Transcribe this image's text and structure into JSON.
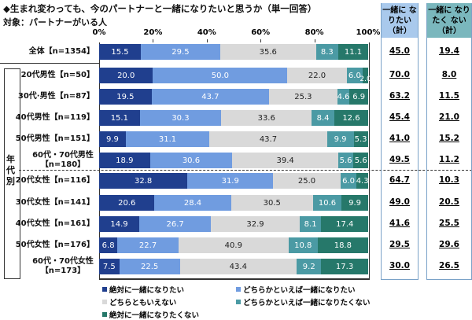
{
  "title": "◆生まれ変わっても、今のパートナーと一緒になりたいと思うか（単一回答）",
  "subtitle": "対象：パートナーがいる人",
  "group_label": "年代別",
  "total_headers": [
    "一緒に なりたい （計）",
    "一緒に なりたく ない（計）"
  ],
  "colors": [
    "#203f8e",
    "#709ce0",
    "#d9d9d9",
    "#4b9aa4",
    "#26786a"
  ],
  "chart_data": {
    "type": "bar",
    "orientation": "horizontal",
    "stacked": true,
    "xlim": [
      0,
      100
    ],
    "xticks": [
      "0%",
      "20%",
      "40%",
      "60%",
      "80%",
      "100%"
    ],
    "legend_position": "bottom",
    "categories": [
      "全体【n=1354】",
      "20代男性【n=50】",
      "30代·男性【n=87】",
      "40代男性【n=119】",
      "50代男性【n=151】",
      "60代・70代男性【n=180】",
      "20代女性【n=116】",
      "30代女性【n=141】",
      "40代女性【n=161】",
      "50代女性【n=176】",
      "60代・70代女性【n=173】"
    ],
    "series": [
      {
        "name": "絶対に一緒になりたい",
        "values": [
          15.5,
          20.0,
          19.5,
          15.1,
          9.9,
          18.9,
          32.8,
          20.6,
          14.9,
          6.8,
          7.5
        ]
      },
      {
        "name": "どちらかといえば一緒になりたい",
        "values": [
          29.5,
          50.0,
          43.7,
          30.3,
          31.1,
          30.6,
          31.9,
          28.4,
          26.7,
          22.7,
          22.5
        ]
      },
      {
        "name": "どちらともいえない",
        "values": [
          35.6,
          22.0,
          25.3,
          33.6,
          43.7,
          39.4,
          25.0,
          30.5,
          32.9,
          40.9,
          43.4
        ]
      },
      {
        "name": "どちらかといえば一緒になりたくない",
        "values": [
          8.3,
          6.0,
          4.6,
          8.4,
          9.9,
          5.6,
          6.0,
          10.6,
          8.1,
          10.8,
          9.2
        ]
      },
      {
        "name": "絶対に一緒になりたくない",
        "values": [
          11.1,
          2.0,
          6.9,
          12.6,
          5.3,
          5.6,
          4.3,
          9.9,
          17.4,
          18.8,
          17.3
        ]
      }
    ],
    "totals_want": [
      "45.0",
      "70.0",
      "63.2",
      "45.4",
      "41.0",
      "49.5",
      "64.7",
      "49.0",
      "41.6",
      "29.5",
      "30.0"
    ],
    "totals_not_want": [
      "19.4",
      "8.0",
      "11.5",
      "21.0",
      "15.2",
      "11.2",
      "10.3",
      "20.5",
      "25.5",
      "29.6",
      "26.5"
    ]
  }
}
